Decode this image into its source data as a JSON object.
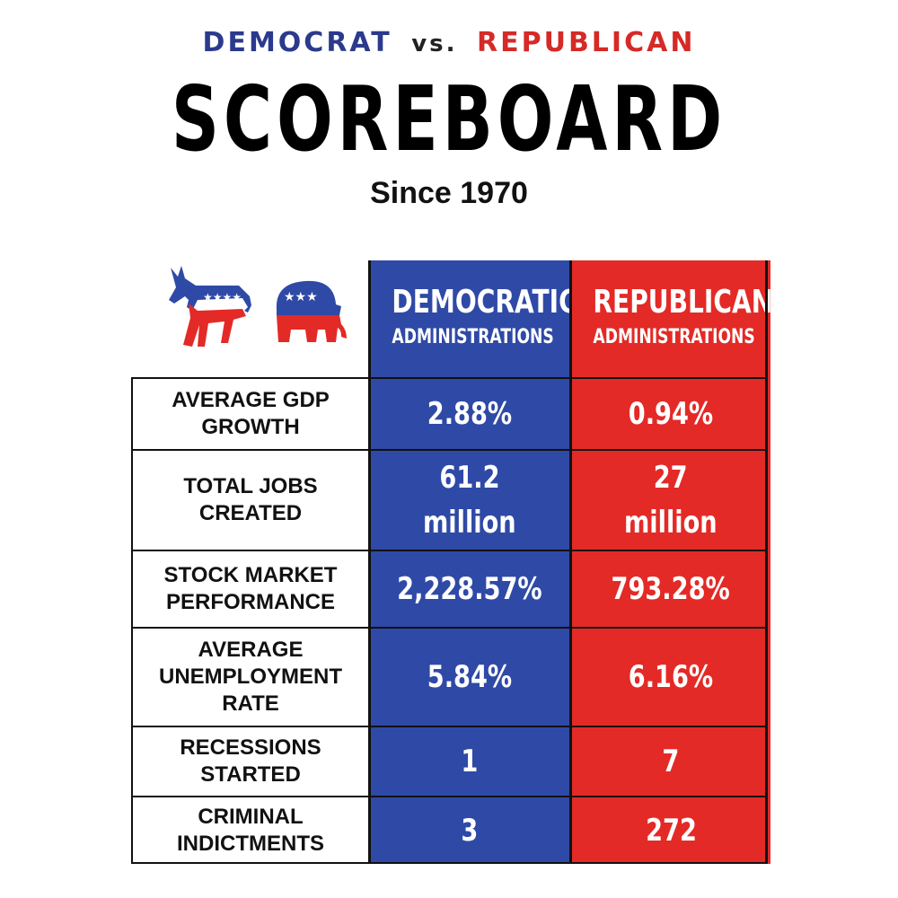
{
  "header": {
    "democrat": "DEMOCRAT",
    "vs": "vs.",
    "republican": "REPUBLICAN",
    "title": "SCOREBOARD",
    "subtitle": "Since 1970"
  },
  "colors": {
    "democratic_blue": "#2f49a6",
    "republican_red": "#e32a26"
  },
  "icons": [
    "donkey-icon",
    "elephant-icon"
  ],
  "columns": {
    "democratic": {
      "title": "DEMOCRATIC",
      "subtitle": "ADMINISTRATIONS"
    },
    "republican": {
      "title": "REPUBLICAN",
      "subtitle": "ADMINISTRATIONS"
    }
  },
  "rows": [
    {
      "label_lines": [
        "AVERAGE GDP",
        "GROWTH"
      ],
      "democratic": [
        "2.88%"
      ],
      "republican": [
        "0.94%"
      ]
    },
    {
      "label_lines": [
        "TOTAL JOBS",
        "CREATED"
      ],
      "democratic": [
        "61.2",
        "million"
      ],
      "republican": [
        "27",
        "million"
      ]
    },
    {
      "label_lines": [
        "STOCK MARKET",
        "PERFORMANCE"
      ],
      "democratic": [
        "2,228.57%"
      ],
      "republican": [
        "793.28%"
      ]
    },
    {
      "label_lines": [
        "AVERAGE",
        "UNEMPLOYMENT",
        "RATE"
      ],
      "democratic": [
        "5.84%"
      ],
      "republican": [
        "6.16%"
      ]
    },
    {
      "label_lines": [
        "RECESSIONS",
        "STARTED"
      ],
      "democratic": [
        "1"
      ],
      "republican": [
        "7"
      ]
    },
    {
      "label_lines": [
        "CRIMINAL",
        "INDICTMENTS"
      ],
      "democratic": [
        "3"
      ],
      "republican": [
        "272"
      ]
    }
  ]
}
